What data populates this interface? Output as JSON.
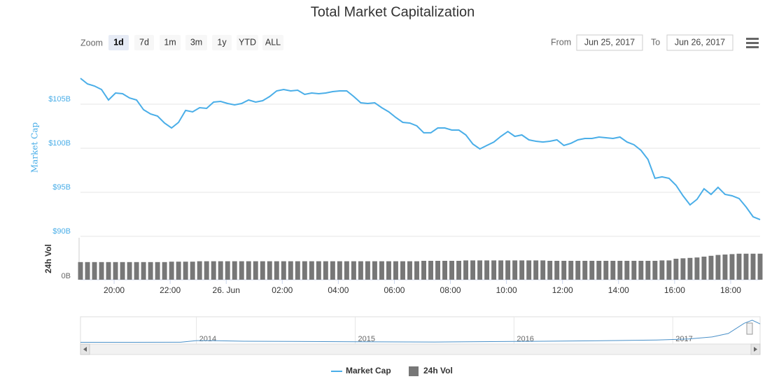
{
  "chart_data": {
    "type": "line",
    "title": "Total Market Capitalization",
    "zoom": {
      "label": "Zoom",
      "buttons": [
        "1d",
        "7d",
        "1m",
        "3m",
        "1y",
        "YTD",
        "ALL"
      ],
      "selected": "1d"
    },
    "range": {
      "from_label": "From",
      "from": "Jun 25, 2017",
      "to_label": "To",
      "to": "Jun 26, 2017"
    },
    "x": [
      18.8,
      19.05,
      19.3,
      19.55,
      19.8,
      20.05,
      20.3,
      20.55,
      20.8,
      21.05,
      21.3,
      21.55,
      21.8,
      22.05,
      22.3,
      22.55,
      22.8,
      23.05,
      23.3,
      23.55,
      23.8,
      24.05,
      24.3,
      24.55,
      24.8,
      25.05,
      25.3,
      25.55,
      25.8,
      26.05,
      26.3,
      26.55,
      26.8,
      27.05,
      27.3,
      27.55,
      27.8,
      28.05,
      28.3,
      28.55,
      28.8,
      29.05,
      29.3,
      29.55,
      29.8,
      30.05,
      30.3,
      30.55,
      30.8,
      31.05,
      31.3,
      31.55,
      31.8,
      32.05,
      32.3,
      32.55,
      32.8,
      33.05,
      33.3,
      33.55,
      33.8,
      34.05,
      34.3,
      34.55,
      34.8,
      35.05,
      35.3,
      35.55,
      35.8,
      36.05,
      36.3,
      36.55,
      36.8,
      37.05,
      37.3,
      37.55,
      37.8,
      38.05,
      38.3,
      38.55,
      38.8,
      39.05,
      39.3,
      39.55,
      39.8,
      40.05,
      40.3,
      40.55,
      40.8,
      41.05,
      41.3,
      41.55,
      41.8,
      42.05,
      42.3,
      42.55,
      42.8,
      43.05
    ],
    "xlim": [
      18.8,
      43.05
    ],
    "xticks": [
      {
        "value": 20,
        "label": "20:00"
      },
      {
        "value": 22,
        "label": "22:00"
      },
      {
        "value": 24,
        "label": "26. Jun"
      },
      {
        "value": 26,
        "label": "02:00"
      },
      {
        "value": 28,
        "label": "04:00"
      },
      {
        "value": 30,
        "label": "06:00"
      },
      {
        "value": 32,
        "label": "08:00"
      },
      {
        "value": 34,
        "label": "10:00"
      },
      {
        "value": 36,
        "label": "12:00"
      },
      {
        "value": 38,
        "label": "14:00"
      },
      {
        "value": 40,
        "label": "16:00"
      },
      {
        "value": 42,
        "label": "18:00"
      }
    ],
    "ylabel": "Market Cap",
    "ylim": [
      90,
      110
    ],
    "yticks": [
      {
        "value": 90,
        "label": "$90B"
      },
      {
        "value": 95,
        "label": "$95B"
      },
      {
        "value": 100,
        "label": "$100B"
      },
      {
        "value": 105,
        "label": "$105B"
      }
    ],
    "y2label": "24h Vol",
    "y2lim": [
      0,
      10
    ],
    "y2ticks": [
      {
        "value": 0,
        "label": "0B"
      }
    ],
    "grid": true,
    "series": [
      {
        "name": "Market Cap",
        "color": "#4aaee8",
        "values": [
          107.94,
          107.3,
          107.06,
          106.67,
          105.48,
          106.27,
          106.19,
          105.71,
          105.48,
          104.37,
          103.89,
          103.65,
          102.86,
          102.3,
          102.94,
          104.29,
          104.13,
          104.6,
          104.52,
          105.24,
          105.32,
          105.08,
          104.92,
          105.08,
          105.48,
          105.24,
          105.4,
          105.87,
          106.51,
          106.67,
          106.51,
          106.59,
          106.11,
          106.27,
          106.19,
          106.27,
          106.43,
          106.51,
          106.51,
          105.87,
          105.16,
          105.08,
          105.16,
          104.6,
          104.13,
          103.49,
          102.94,
          102.86,
          102.54,
          101.75,
          101.75,
          102.3,
          102.3,
          102.06,
          102.06,
          101.51,
          100.48,
          99.92,
          100.32,
          100.71,
          101.35,
          101.9,
          101.35,
          101.51,
          100.95,
          100.79,
          100.71,
          100.79,
          100.95,
          100.32,
          100.56,
          100.95,
          101.11,
          101.11,
          101.27,
          101.19,
          101.11,
          101.27,
          100.71,
          100.4,
          99.76,
          98.73,
          96.59,
          96.75,
          96.59,
          95.79,
          94.6,
          93.57,
          94.21,
          95.4,
          94.76,
          95.56,
          94.76,
          94.6,
          94.29,
          93.33,
          92.22,
          91.9
        ]
      },
      {
        "name": "24h Vol",
        "color": "#777777",
        "axis": "y2",
        "type": "bar",
        "values": [
          4.2,
          4.2,
          4.2,
          4.2,
          4.2,
          4.2,
          4.2,
          4.2,
          4.2,
          4.2,
          4.2,
          4.2,
          4.2,
          4.3,
          4.3,
          4.3,
          4.3,
          4.4,
          4.4,
          4.4,
          4.4,
          4.4,
          4.4,
          4.4,
          4.4,
          4.4,
          4.4,
          4.4,
          4.4,
          4.4,
          4.4,
          4.4,
          4.4,
          4.4,
          4.4,
          4.4,
          4.4,
          4.4,
          4.4,
          4.4,
          4.4,
          4.4,
          4.4,
          4.4,
          4.4,
          4.4,
          4.4,
          4.4,
          4.4,
          4.5,
          4.5,
          4.5,
          4.5,
          4.5,
          4.5,
          4.6,
          4.6,
          4.6,
          4.6,
          4.6,
          4.6,
          4.6,
          4.6,
          4.6,
          4.6,
          4.6,
          4.6,
          4.5,
          4.5,
          4.5,
          4.5,
          4.5,
          4.5,
          4.5,
          4.5,
          4.5,
          4.5,
          4.5,
          4.5,
          4.5,
          4.5,
          4.5,
          4.5,
          4.6,
          4.6,
          5.0,
          5.1,
          5.2,
          5.3,
          5.5,
          5.7,
          5.9,
          6.0,
          6.1,
          6.2,
          6.2,
          6.2,
          6.2
        ]
      }
    ],
    "navigator": {
      "color": "#4a90c8",
      "x": [
        2013.27,
        2013.6,
        2013.9,
        2014.0,
        2014.1,
        2014.3,
        2014.6,
        2015.0,
        2015.5,
        2016.0,
        2016.5,
        2016.9,
        2017.1,
        2017.25,
        2017.35,
        2017.45,
        2017.5,
        2017.55
      ],
      "values": [
        1.6,
        1.6,
        2,
        10,
        10,
        7,
        6,
        4,
        3,
        6,
        9,
        13,
        18,
        28,
        45,
        95,
        110,
        92
      ],
      "xlim": [
        2013.27,
        2017.55
      ],
      "ylim": [
        0,
        120
      ],
      "xticks": [
        2014,
        2015,
        2016,
        2017
      ]
    }
  }
}
